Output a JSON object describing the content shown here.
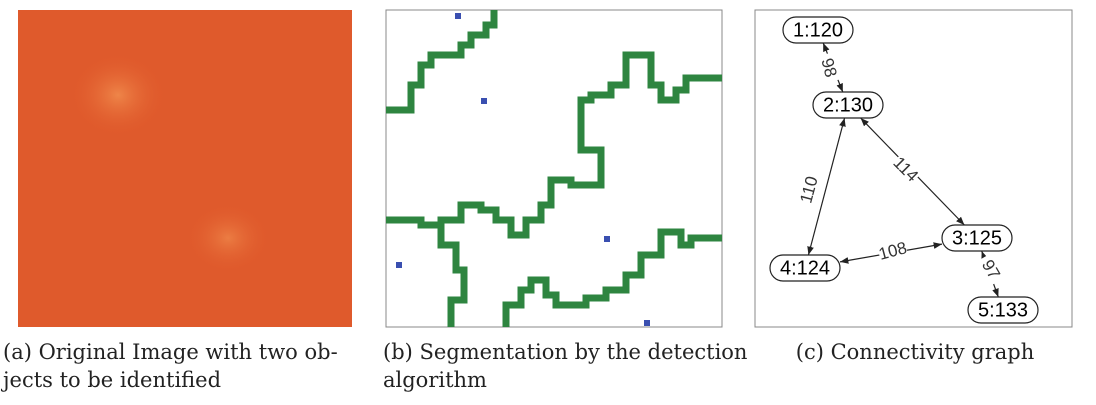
{
  "panels": [
    {
      "caption": [
        "(a) Original Image with two ob-",
        "jects to be identified"
      ]
    },
    {
      "caption": [
        "(b) Segmentation by the detection",
        "algorithm"
      ]
    },
    {
      "caption": [
        "(c) Connectivity graph"
      ]
    }
  ],
  "graph": {
    "nodes": [
      {
        "label": "1:120"
      },
      {
        "label": "2:130"
      },
      {
        "label": "3:125"
      },
      {
        "label": "4:124"
      },
      {
        "label": "5:133"
      }
    ],
    "edges": [
      {
        "label": "98"
      },
      {
        "label": "114"
      },
      {
        "label": "110"
      },
      {
        "label": "108"
      },
      {
        "label": "97"
      }
    ]
  }
}
